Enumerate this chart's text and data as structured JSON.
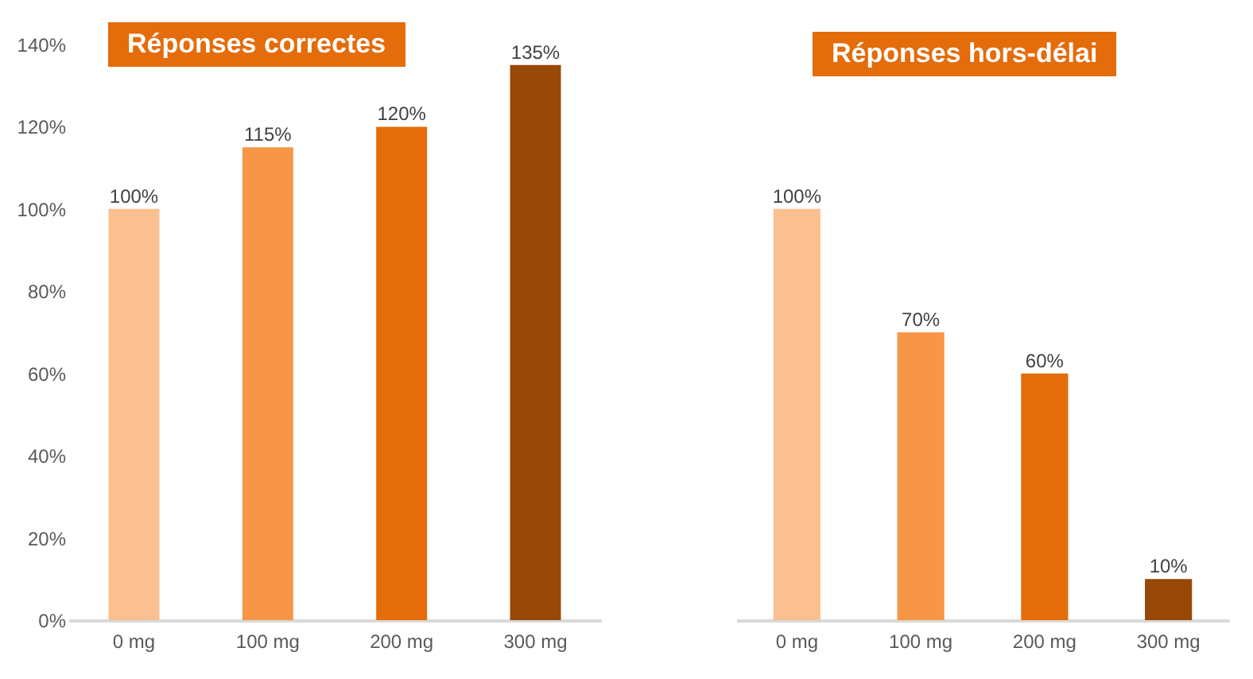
{
  "chart_data": [
    {
      "type": "bar",
      "title": "Réponses correctes",
      "categories": [
        "0 mg",
        "100 mg",
        "200 mg",
        "300 mg"
      ],
      "values": [
        100,
        115,
        120,
        135
      ],
      "colors": [
        "#fac090",
        "#f79646",
        "#e46c0a",
        "#984807"
      ],
      "value_labels": [
        "100%",
        "115%",
        "120%",
        "135%"
      ],
      "ylim": [
        0,
        140
      ],
      "yticks": [
        {
          "value": 0,
          "label": "0%"
        },
        {
          "value": 20,
          "label": "20%"
        },
        {
          "value": 40,
          "label": "40%"
        },
        {
          "value": 60,
          "label": "60%"
        },
        {
          "value": 80,
          "label": "80%"
        },
        {
          "value": 100,
          "label": "100%"
        },
        {
          "value": 120,
          "label": "120%"
        },
        {
          "value": 140,
          "label": "140%"
        }
      ],
      "grid": false
    },
    {
      "type": "bar",
      "title": "Réponses hors-délai",
      "categories": [
        "0 mg",
        "100 mg",
        "200 mg",
        "300 mg"
      ],
      "values": [
        100,
        70,
        60,
        10
      ],
      "colors": [
        "#fac090",
        "#f79646",
        "#e46c0a",
        "#984807"
      ],
      "value_labels": [
        "100%",
        "70%",
        "60%",
        "10%"
      ],
      "ylim": [
        0,
        140
      ],
      "tick_labels": "x",
      "grid": false
    }
  ]
}
